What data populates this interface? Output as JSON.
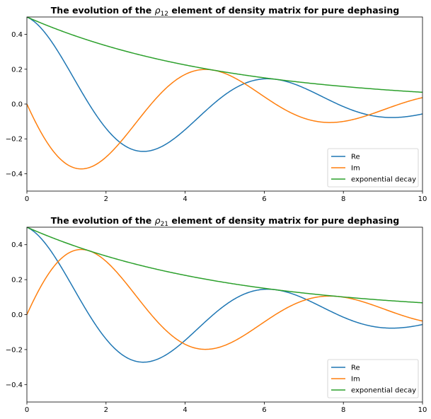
{
  "chart_data": [
    {
      "type": "line",
      "title": "The evolution of the ρ12 element of density matrix for pure dephasing",
      "title_parts": {
        "before": "The evolution of the ",
        "symbol": "ρ",
        "subscript": "12",
        "after": " element of density matrix for pure dephasing"
      },
      "xlabel": "",
      "ylabel": "",
      "xlim": [
        0,
        10
      ],
      "ylim": [
        -0.5,
        0.5
      ],
      "xticks": [
        "0",
        "2",
        "4",
        "6",
        "8",
        "10"
      ],
      "yticks": [
        "0.4",
        "0.2",
        "0.0",
        "−0.2",
        "−0.4"
      ],
      "grid": false,
      "legend_position": "bottom-right",
      "series": [
        {
          "name": "Re",
          "color": "#1f77b4",
          "formula": "0.5*exp(-0.2t)*cos(t)",
          "x": [
            0,
            0.5,
            1,
            1.5,
            2,
            2.5,
            3,
            3.5,
            4,
            4.5,
            5,
            5.5,
            6,
            6.5,
            7,
            7.5,
            8,
            8.5,
            9,
            9.5,
            10
          ],
          "values": [
            0.5,
            0.397,
            0.221,
            0.026,
            -0.139,
            -0.243,
            -0.272,
            -0.233,
            -0.147,
            -0.043,
            0.052,
            0.118,
            0.145,
            0.135,
            0.093,
            0.039,
            -0.012,
            -0.051,
            -0.075,
            -0.074,
            -0.057
          ]
        },
        {
          "name": "Im",
          "color": "#ff7f0e",
          "formula": "-0.5*exp(-0.2t)*sin(t)",
          "x": [
            0,
            0.5,
            1,
            1.5,
            2,
            2.5,
            3,
            3.5,
            4,
            4.5,
            5,
            5.5,
            6,
            6.5,
            7,
            7.5,
            8,
            8.5,
            9,
            9.5,
            10
          ],
          "values": [
            0,
            -0.217,
            -0.344,
            -0.368,
            -0.305,
            -0.182,
            -0.039,
            0.086,
            0.17,
            0.199,
            0.176,
            0.112,
            0.042,
            -0.028,
            -0.081,
            -0.104,
            -0.1,
            -0.073,
            -0.034,
            0.008,
            0.037
          ]
        },
        {
          "name": "exponential decay",
          "color": "#2ca02c",
          "formula": "0.5*exp(-0.2t)",
          "x": [
            0,
            0.5,
            1,
            1.5,
            2,
            2.5,
            3,
            3.5,
            4,
            4.5,
            5,
            5.5,
            6,
            6.5,
            7,
            7.5,
            8,
            8.5,
            9,
            9.5,
            10
          ],
          "values": [
            0.5,
            0.452,
            0.409,
            0.37,
            0.335,
            0.303,
            0.274,
            0.248,
            0.225,
            0.203,
            0.184,
            0.166,
            0.151,
            0.136,
            0.123,
            0.112,
            0.101,
            0.091,
            0.083,
            0.075,
            0.068
          ]
        }
      ]
    },
    {
      "type": "line",
      "title": "The evolution of the ρ21 element of density matrix for pure dephasing",
      "title_parts": {
        "before": "The evolution of the ",
        "symbol": "ρ",
        "subscript": "21",
        "after": " element of density matrix for pure dephasing"
      },
      "xlabel": "",
      "ylabel": "",
      "xlim": [
        0,
        10
      ],
      "ylim": [
        -0.5,
        0.5
      ],
      "xticks": [
        "0",
        "2",
        "4",
        "6",
        "8",
        "10"
      ],
      "yticks": [
        "0.4",
        "0.2",
        "0.0",
        "−0.2",
        "−0.4"
      ],
      "grid": false,
      "legend_position": "bottom-right",
      "series": [
        {
          "name": "Re",
          "color": "#1f77b4",
          "formula": "0.5*exp(-0.2t)*cos(t)",
          "x": [
            0,
            0.5,
            1,
            1.5,
            2,
            2.5,
            3,
            3.5,
            4,
            4.5,
            5,
            5.5,
            6,
            6.5,
            7,
            7.5,
            8,
            8.5,
            9,
            9.5,
            10
          ],
          "values": [
            0.5,
            0.397,
            0.221,
            0.026,
            -0.139,
            -0.243,
            -0.272,
            -0.233,
            -0.147,
            -0.043,
            0.052,
            0.118,
            0.145,
            0.135,
            0.093,
            0.039,
            -0.012,
            -0.051,
            -0.075,
            -0.074,
            -0.057
          ]
        },
        {
          "name": "Im",
          "color": "#ff7f0e",
          "formula": "0.5*exp(-0.2t)*sin(t)",
          "x": [
            0,
            0.5,
            1,
            1.5,
            2,
            2.5,
            3,
            3.5,
            4,
            4.5,
            5,
            5.5,
            6,
            6.5,
            7,
            7.5,
            8,
            8.5,
            9,
            9.5,
            10
          ],
          "values": [
            0,
            0.217,
            0.344,
            0.368,
            0.305,
            0.182,
            0.039,
            -0.086,
            -0.17,
            -0.199,
            -0.176,
            -0.112,
            -0.042,
            0.028,
            0.081,
            0.104,
            0.1,
            0.073,
            0.034,
            -0.008,
            -0.037
          ]
        },
        {
          "name": "exponential decay",
          "color": "#2ca02c",
          "formula": "0.5*exp(-0.2t)",
          "x": [
            0,
            0.5,
            1,
            1.5,
            2,
            2.5,
            3,
            3.5,
            4,
            4.5,
            5,
            5.5,
            6,
            6.5,
            7,
            7.5,
            8,
            8.5,
            9,
            9.5,
            10
          ],
          "values": [
            0.5,
            0.452,
            0.409,
            0.37,
            0.335,
            0.303,
            0.274,
            0.248,
            0.225,
            0.203,
            0.184,
            0.166,
            0.151,
            0.136,
            0.123,
            0.112,
            0.101,
            0.091,
            0.083,
            0.075,
            0.068
          ]
        }
      ]
    }
  ]
}
